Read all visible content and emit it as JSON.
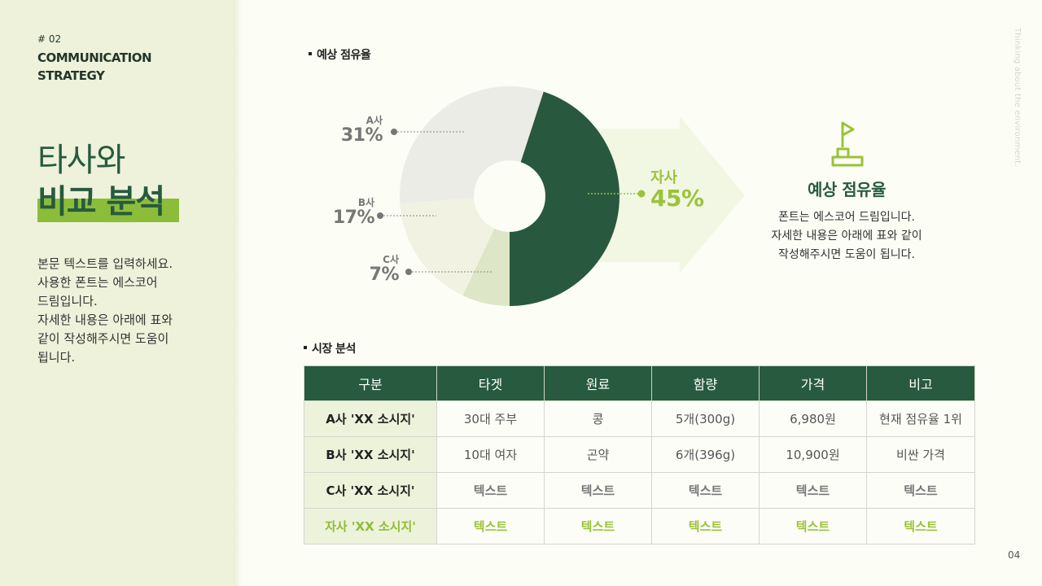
{
  "sidebar": {
    "section_number": "# 02",
    "section_name_line1": "COMMUNICATION",
    "section_name_line2": "STRATEGY",
    "title_line1": "타사와",
    "title_line2": "비교 분석",
    "body_lines": [
      "본문 텍스트를 입력하세요.",
      "사용한 폰트는 에스코어",
      "드림입니다.",
      "자세한 내용은 아래에 표와",
      "같이 작성해주시면 도움이",
      "됩니다."
    ]
  },
  "side_text": "Thinking about the environment.",
  "page_number": "04",
  "share_section": {
    "title": "예상 점유율"
  },
  "chart_data": {
    "type": "pie",
    "title": "예상 점유율",
    "donut": true,
    "categories": [
      "자사",
      "C사",
      "B사",
      "A사"
    ],
    "values": [
      45,
      7,
      17,
      31
    ],
    "labels": [
      "45%",
      "7%",
      "17%",
      "31%"
    ],
    "colors": [
      "#28583d",
      "#dde6c6",
      "#f1f2e2",
      "#ebece6"
    ],
    "start_angle_deg": 18,
    "highlight": "자사"
  },
  "pie_labels": {
    "a": {
      "company": "A사",
      "pct": "31%"
    },
    "b": {
      "company": "B사",
      "pct": "17%"
    },
    "c": {
      "company": "C사",
      "pct": "7%"
    },
    "own": {
      "company": "자사",
      "pct": "45%"
    }
  },
  "info": {
    "icon": "flag-icon",
    "title": "예상 점유율",
    "desc_lines": [
      "폰트는 에스코어 드림입니다.",
      "자세한 내용은 아래에 표와 같이",
      "작성해주시면 도움이 됩니다."
    ]
  },
  "market_section": {
    "title": "시장 분석",
    "headers": [
      "구분",
      "타겟",
      "원료",
      "함량",
      "가격",
      "비고"
    ],
    "rows": [
      [
        "A사 'XX 소시지'",
        "30대 주부",
        "콩",
        "5개(300g)",
        "6,980원",
        "현재 점유율 1위"
      ],
      [
        "B사 'XX 소시지'",
        "10대 여자",
        "곤약",
        "6개(396g)",
        "10,900원",
        "비싼 가격"
      ],
      [
        "C사 'XX 소시지'",
        "텍스트",
        "텍스트",
        "텍스트",
        "텍스트",
        "텍스트"
      ],
      [
        "자사 'XX 소시지'",
        "텍스트",
        "텍스트",
        "텍스트",
        "텍스트",
        "텍스트"
      ]
    ]
  },
  "colors": {
    "primary_dark_green": "#275a3e",
    "accent_lime": "#9bc23a",
    "sidebar_bg": "#eef2da",
    "page_bg": "#fcfdf5"
  }
}
